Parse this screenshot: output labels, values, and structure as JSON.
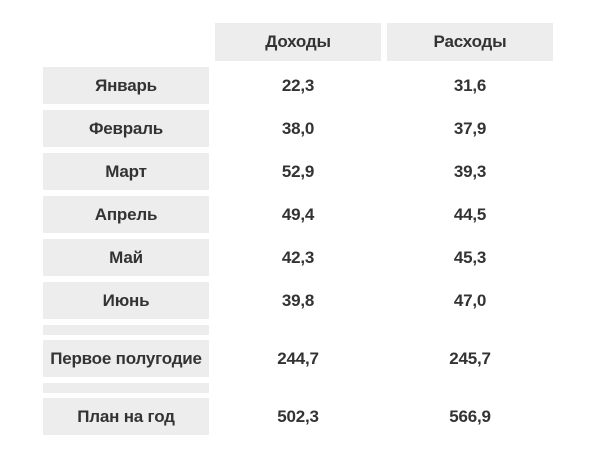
{
  "table": {
    "headers": [
      "Доходы",
      "Расходы"
    ],
    "rows": [
      {
        "label": "Январь",
        "income": "22,3",
        "expense": "31,6"
      },
      {
        "label": "Февраль",
        "income": "38,0",
        "expense": "37,9"
      },
      {
        "label": "Март",
        "income": "52,9",
        "expense": "39,3"
      },
      {
        "label": "Апрель",
        "income": "49,4",
        "expense": "44,5"
      },
      {
        "label": "Май",
        "income": "42,3",
        "expense": "45,3"
      },
      {
        "label": "Июнь",
        "income": "39,8",
        "expense": "47,0"
      }
    ],
    "summary": [
      {
        "label": "Первое полугодие",
        "income": "244,7",
        "expense": "245,7"
      },
      {
        "label": "План на год",
        "income": "502,3",
        "expense": "566,9"
      }
    ]
  },
  "colors": {
    "cell_background": "#ededed",
    "text": "#333333"
  }
}
